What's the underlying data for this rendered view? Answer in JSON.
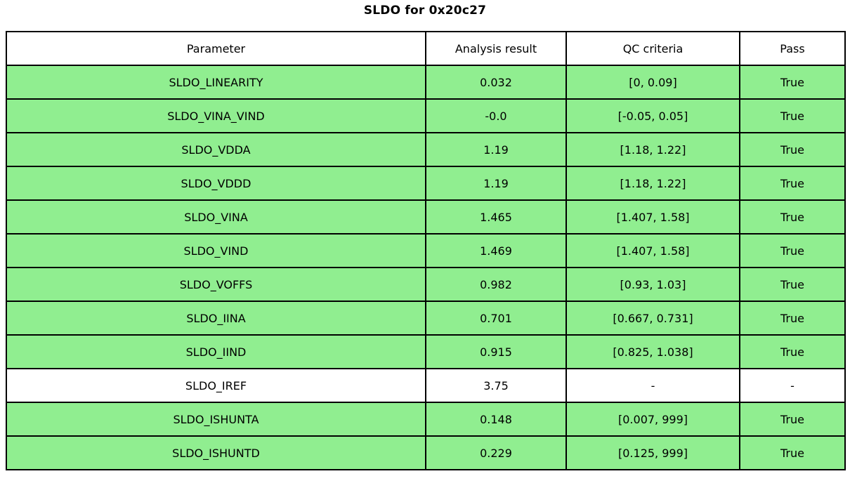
{
  "title": "SLDO for 0x20c27",
  "columns": [
    "Parameter",
    "Analysis result",
    "QC criteria",
    "Pass"
  ],
  "rows": [
    {
      "parameter": "SLDO_LINEARITY",
      "result": "0.032",
      "criteria": "[0, 0.09]",
      "pass": "True",
      "highlight": true
    },
    {
      "parameter": "SLDO_VINA_VIND",
      "result": "-0.0",
      "criteria": "[-0.05, 0.05]",
      "pass": "True",
      "highlight": true
    },
    {
      "parameter": "SLDO_VDDA",
      "result": "1.19",
      "criteria": "[1.18, 1.22]",
      "pass": "True",
      "highlight": true
    },
    {
      "parameter": "SLDO_VDDD",
      "result": "1.19",
      "criteria": "[1.18, 1.22]",
      "pass": "True",
      "highlight": true
    },
    {
      "parameter": "SLDO_VINA",
      "result": "1.465",
      "criteria": "[1.407, 1.58]",
      "pass": "True",
      "highlight": true
    },
    {
      "parameter": "SLDO_VIND",
      "result": "1.469",
      "criteria": "[1.407, 1.58]",
      "pass": "True",
      "highlight": true
    },
    {
      "parameter": "SLDO_VOFFS",
      "result": "0.982",
      "criteria": "[0.93, 1.03]",
      "pass": "True",
      "highlight": true
    },
    {
      "parameter": "SLDO_IINA",
      "result": "0.701",
      "criteria": "[0.667, 0.731]",
      "pass": "True",
      "highlight": true
    },
    {
      "parameter": "SLDO_IIND",
      "result": "0.915",
      "criteria": "[0.825, 1.038]",
      "pass": "True",
      "highlight": true
    },
    {
      "parameter": "SLDO_IREF",
      "result": "3.75",
      "criteria": "-",
      "pass": "-",
      "highlight": false
    },
    {
      "parameter": "SLDO_ISHUNTA",
      "result": "0.148",
      "criteria": "[0.007, 999]",
      "pass": "True",
      "highlight": true
    },
    {
      "parameter": "SLDO_ISHUNTD",
      "result": "0.229",
      "criteria": "[0.125, 999]",
      "pass": "True",
      "highlight": true
    }
  ],
  "colors": {
    "highlight": "#90EE90",
    "border": "#000000",
    "background": "#FFFFFF"
  },
  "chart_data": {
    "type": "table",
    "title": "SLDO for 0x20c27",
    "columns": [
      "Parameter",
      "Analysis result",
      "QC criteria",
      "Pass"
    ],
    "rows": [
      [
        "SLDO_LINEARITY",
        0.032,
        "[0, 0.09]",
        "True"
      ],
      [
        "SLDO_VINA_VIND",
        -0.0,
        "[-0.05, 0.05]",
        "True"
      ],
      [
        "SLDO_VDDA",
        1.19,
        "[1.18, 1.22]",
        "True"
      ],
      [
        "SLDO_VDDD",
        1.19,
        "[1.18, 1.22]",
        "True"
      ],
      [
        "SLDO_VINA",
        1.465,
        "[1.407, 1.58]",
        "True"
      ],
      [
        "SLDO_VIND",
        1.469,
        "[1.407, 1.58]",
        "True"
      ],
      [
        "SLDO_VOFFS",
        0.982,
        "[0.93, 1.03]",
        "True"
      ],
      [
        "SLDO_IINA",
        0.701,
        "[0.667, 0.731]",
        "True"
      ],
      [
        "SLDO_IIND",
        0.915,
        "[0.825, 1.038]",
        "True"
      ],
      [
        "SLDO_IREF",
        3.75,
        "-",
        "-"
      ],
      [
        "SLDO_ISHUNTA",
        0.148,
        "[0.007, 999]",
        "True"
      ],
      [
        "SLDO_ISHUNTD",
        0.229,
        "[0.125, 999]",
        "True"
      ]
    ],
    "layout": {
      "pass_row_fill": "#90EE90",
      "neutral_row_fill": "#FFFFFF",
      "grid": true
    }
  }
}
